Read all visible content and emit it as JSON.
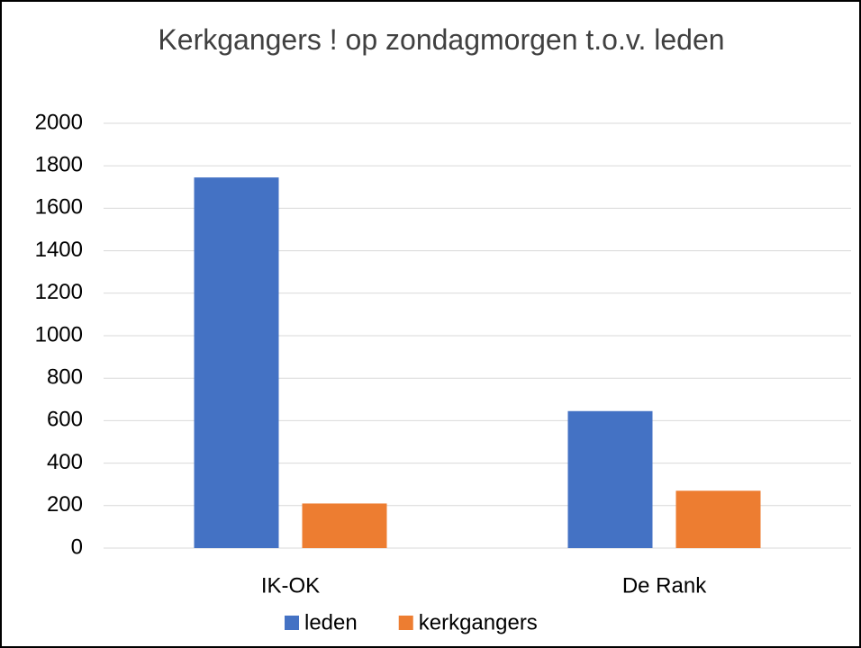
{
  "chart_data": {
    "type": "bar",
    "title": "Kerkgangers ! op zondagmorgen t.o.v. leden",
    "categories": [
      "IK-OK",
      "De Rank"
    ],
    "series": [
      {
        "name": "leden",
        "color": "#4472c4",
        "values": [
          1745,
          645
        ]
      },
      {
        "name": "kerkgangers",
        "color": "#ed7d31",
        "values": [
          210,
          270
        ]
      }
    ],
    "ylim": [
      0,
      2000
    ],
    "yticks": [
      0,
      200,
      400,
      600,
      800,
      1000,
      1200,
      1400,
      1600,
      1800,
      2000
    ],
    "grid": true,
    "legend": "bottom"
  }
}
